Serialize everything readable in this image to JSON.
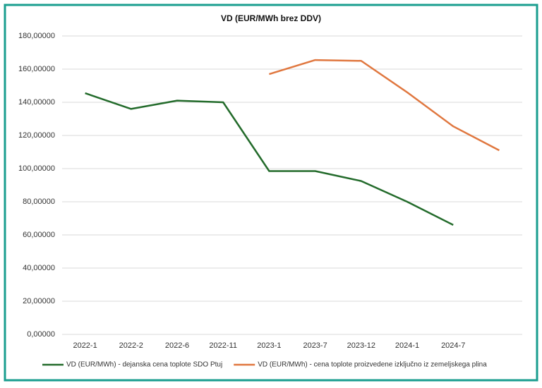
{
  "chart_data": {
    "type": "line",
    "title": "VD (EUR/MWh brez DDV)",
    "categories": [
      "2022-1",
      "2022-2",
      "2022-6",
      "2022-11",
      "2023-1",
      "2023-7",
      "2023-12",
      "2024-1",
      "2024-7",
      null
    ],
    "series": [
      {
        "name": "VD (EUR/MWh) - dejanska cena toplote SDO Ptuj",
        "color": "#236b2b",
        "values": [
          145.5,
          136,
          141,
          140,
          98.5,
          98.5,
          92.5,
          80,
          66,
          null
        ]
      },
      {
        "name": "VD (EUR/MWh) - cena toplote proizvedene izključno iz zemeljskega plina",
        "color": "#e0773f",
        "values": [
          null,
          null,
          null,
          null,
          157,
          165.5,
          165,
          146,
          125.5,
          111
        ]
      }
    ],
    "ylim": [
      0,
      180
    ],
    "yticks": [
      {
        "value": 0,
        "label": "0,00000"
      },
      {
        "value": 20,
        "label": "20,00000"
      },
      {
        "value": 40,
        "label": "40,00000"
      },
      {
        "value": 60,
        "label": "60,00000"
      },
      {
        "value": 80,
        "label": "80,00000"
      },
      {
        "value": 100,
        "label": "100,00000"
      },
      {
        "value": 120,
        "label": "120,00000"
      },
      {
        "value": 140,
        "label": "140,00000"
      },
      {
        "value": 160,
        "label": "160,00000"
      },
      {
        "value": 180,
        "label": "180,00000"
      }
    ],
    "grid": true,
    "legend": "bottom"
  }
}
